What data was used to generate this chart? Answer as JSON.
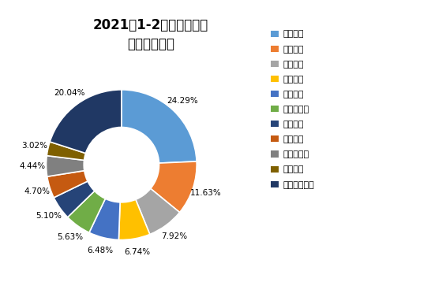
{
  "title_line1": "2021年1-2月多缸柴油机",
  "title_line2": "企业市场分布",
  "labels": [
    "潍柴控股",
    "玉柴集团",
    "云内动力",
    "解放动力",
    "安徽全柴",
    "福田康明斯",
    "江铃汽车",
    "浙江新柴",
    "东风康明斯",
    "上柴股份",
    "其他企业合计"
  ],
  "values": [
    24.29,
    11.63,
    7.92,
    6.74,
    6.48,
    5.63,
    5.1,
    4.7,
    4.44,
    3.02,
    20.04
  ],
  "colors": [
    "#5B9BD5",
    "#ED7D31",
    "#A5A5A5",
    "#FFC000",
    "#4472C4",
    "#70AD47",
    "#264478",
    "#C55A11",
    "#808080",
    "#7F6000",
    "#203864"
  ],
  "pct_labels": [
    "24.29%",
    "11.63%",
    "7.92%",
    "6.74%",
    "6.48%",
    "5.63%",
    "5.10%",
    "4.70%",
    "4.44%",
    "3.02%",
    "20.04%"
  ],
  "background_color": "#FFFFFF",
  "title_fontsize": 12,
  "legend_fontsize": 8,
  "pct_fontsize": 7.5
}
